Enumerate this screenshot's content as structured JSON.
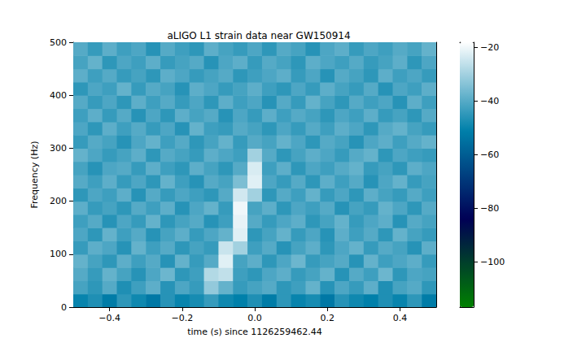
{
  "chart_data": {
    "type": "heatmap",
    "title": "aLIGO L1 strain data near GW150914",
    "xlabel": "time (s) since 1126259462.44",
    "ylabel": "Frequency (Hz)",
    "x": [
      -0.48,
      -0.44,
      -0.4,
      -0.36,
      -0.32,
      -0.28,
      -0.24,
      -0.2,
      -0.16,
      -0.12,
      -0.08,
      -0.04,
      0.0,
      0.04,
      0.08,
      0.12,
      0.16,
      0.2,
      0.24,
      0.28,
      0.32,
      0.36,
      0.4,
      0.44,
      0.48
    ],
    "y": [
      12.5,
      37.5,
      62.5,
      87.5,
      112.5,
      137.5,
      162.5,
      187.5,
      212.5,
      237.5,
      262.5,
      287.5,
      312.5,
      337.5,
      362.5,
      387.5,
      412.5,
      437.5,
      462.5,
      487.5
    ],
    "cells": [
      [
        -50,
        -47,
        -52,
        -45,
        -49,
        -53,
        -46,
        -50,
        -48,
        -44,
        -49,
        -51,
        -47,
        -52,
        -45,
        -50,
        -48,
        -53,
        -46,
        -49,
        -51,
        -47,
        -50,
        -45,
        -52
      ],
      [
        -42,
        -45,
        -40,
        -47,
        -43,
        -39,
        -46,
        -41,
        -44,
        -32,
        -38,
        -44,
        -42,
        -40,
        -45,
        -43,
        -38,
        -46,
        -41,
        -44,
        -39,
        -47,
        -42,
        -40,
        -45
      ],
      [
        -40,
        -44,
        -38,
        -42,
        -46,
        -41,
        -37,
        -45,
        -43,
        -28,
        -26,
        -43,
        -45,
        -41,
        -39,
        -44,
        -42,
        -38,
        -46,
        -40,
        -43,
        -37,
        -45,
        -41,
        -42
      ],
      [
        -38,
        -42,
        -45,
        -39,
        -43,
        -40,
        -46,
        -38,
        -44,
        -40,
        -22,
        -42,
        -39,
        -45,
        -41,
        -37,
        -44,
        -42,
        -40,
        -46,
        -38,
        -43,
        -41,
        -39,
        -44
      ],
      [
        -44,
        -39,
        -41,
        -46,
        -38,
        -43,
        -40,
        -45,
        -42,
        -44,
        -25,
        -30,
        -43,
        -40,
        -46,
        -42,
        -39,
        -45,
        -41,
        -38,
        -44,
        -40,
        -42,
        -46,
        -39
      ],
      [
        -41,
        -45,
        -38,
        -43,
        -40,
        -46,
        -42,
        -39,
        -44,
        -41,
        -38,
        -22,
        -45,
        -42,
        -38,
        -44,
        -41,
        -46,
        -39,
        -43,
        -40,
        -45,
        -38,
        -42,
        -44
      ],
      [
        -43,
        -40,
        -46,
        -41,
        -44,
        -38,
        -45,
        -42,
        -40,
        -46,
        -43,
        -21,
        -40,
        -44,
        -41,
        -39,
        -45,
        -42,
        -38,
        -44,
        -41,
        -39,
        -46,
        -40,
        -42
      ],
      [
        -39,
        -44,
        -42,
        -45,
        -40,
        -43,
        -39,
        -46,
        -41,
        -38,
        -44,
        -20,
        -42,
        -39,
        -45,
        -41,
        -43,
        -40,
        -46,
        -42,
        -44,
        -38,
        -41,
        -45,
        -40
      ],
      [
        -45,
        -41,
        -43,
        -39,
        -46,
        -40,
        -44,
        -41,
        -43,
        -45,
        -40,
        -24,
        -30,
        -45,
        -40,
        -43,
        -38,
        -44,
        -41,
        -45,
        -39,
        -42,
        -44,
        -40,
        -43
      ],
      [
        -40,
        -43,
        -39,
        -44,
        -41,
        -45,
        -38,
        -43,
        -46,
        -40,
        -42,
        -35,
        -22,
        -41,
        -44,
        -40,
        -45,
        -39,
        -43,
        -40,
        -46,
        -41,
        -38,
        -44,
        -42
      ],
      [
        -42,
        -46,
        -41,
        -40,
        -44,
        -39,
        -43,
        -45,
        -39,
        -42,
        -45,
        -40,
        -23,
        -43,
        -39,
        -45,
        -41,
        -43,
        -40,
        -38,
        -44,
        -42,
        -45,
        -39,
        -41
      ],
      [
        -38,
        -41,
        -44,
        -42,
        -39,
        -45,
        -40,
        -42,
        -44,
        -39,
        -41,
        -43,
        -30,
        -40,
        -45,
        -42,
        -39,
        -41,
        -44,
        -40,
        -38,
        -45,
        -41,
        -43,
        -44
      ],
      [
        -44,
        -40,
        -42,
        -46,
        -41,
        -38,
        -43,
        -40,
        -45,
        -42,
        -38,
        -44,
        -40,
        -42,
        -38,
        -41,
        -45,
        -40,
        -42,
        -46,
        -41,
        -39,
        -43,
        -40,
        -38
      ],
      [
        -41,
        -45,
        -39,
        -43,
        -40,
        -44,
        -41,
        -46,
        -38,
        -43,
        -44,
        -40,
        -42,
        -45,
        -41,
        -44,
        -40,
        -43,
        -39,
        -41,
        -45,
        -40,
        -38,
        -42,
        -44
      ],
      [
        -43,
        -39,
        -44,
        -40,
        -46,
        -41,
        -45,
        -39,
        -42,
        -40,
        -46,
        -41,
        -44,
        -39,
        -43,
        -40,
        -42,
        -45,
        -41,
        -43,
        -39,
        -44,
        -42,
        -45,
        -40
      ],
      [
        -40,
        -44,
        -41,
        -45,
        -39,
        -43,
        -40,
        -44,
        -41,
        -45,
        -39,
        -43,
        -41,
        -46,
        -40,
        -44,
        -38,
        -42,
        -45,
        -40,
        -43,
        -41,
        -46,
        -39,
        -43
      ],
      [
        -45,
        -41,
        -43,
        -38,
        -44,
        -40,
        -42,
        -46,
        -39,
        -41,
        -44,
        -42,
        -39,
        -43,
        -45,
        -41,
        -44,
        -39,
        -42,
        -44,
        -40,
        -46,
        -41,
        -43,
        -39
      ],
      [
        -39,
        -43,
        -40,
        -44,
        -42,
        -45,
        -39,
        -41,
        -44,
        -42,
        -40,
        -45,
        -43,
        -41,
        -39,
        -44,
        -41,
        -46,
        -40,
        -42,
        -45,
        -39,
        -43,
        -41,
        -44
      ],
      [
        -42,
        -38,
        -45,
        -41,
        -43,
        -39,
        -44,
        -42,
        -40,
        -46,
        -41,
        -39,
        -44,
        -40,
        -42,
        -45,
        -39,
        -41,
        -43,
        -40,
        -44,
        -42,
        -39,
        -45,
        -41
      ],
      [
        -40,
        -44,
        -39,
        -43,
        -41,
        -46,
        -40,
        -43,
        -45,
        -39,
        -42,
        -44,
        -41,
        -45,
        -40,
        -42,
        -46,
        -41,
        -39,
        -44,
        -41,
        -43,
        -40,
        -42,
        -38
      ]
    ],
    "xlim": [
      -0.5,
      0.5
    ],
    "xticks": [
      {
        "value": -0.4,
        "label": "−0.4"
      },
      {
        "value": -0.2,
        "label": "−0.2"
      },
      {
        "value": 0.0,
        "label": "0.0"
      },
      {
        "value": 0.2,
        "label": "0.2"
      },
      {
        "value": 0.4,
        "label": "0.4"
      }
    ],
    "ylim": [
      0,
      500
    ],
    "yticks": [
      0,
      100,
      200,
      300,
      400,
      500
    ],
    "colorbar": {
      "range": [
        -117,
        -18
      ],
      "ticks": [
        {
          "value": -100,
          "label": "−100"
        },
        {
          "value": -80,
          "label": "−80"
        },
        {
          "value": -60,
          "label": "−60"
        },
        {
          "value": -40,
          "label": "−40"
        },
        {
          "value": -20,
          "label": "−20"
        }
      ]
    }
  }
}
